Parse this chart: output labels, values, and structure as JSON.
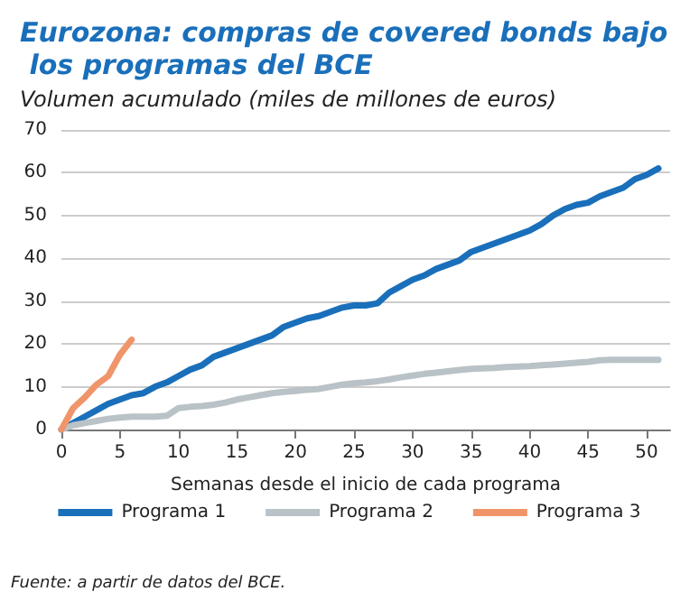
{
  "chart_data": {
    "type": "line",
    "title": "Eurozona: compras de covered bonds bajo los programas del BCE",
    "subtitle": "Volumen acumulado (miles de millones de euros)",
    "xlabel": "Semanas desde el inicio de cada programa",
    "annotations": [
      "Fuente: a partir de datos del BCE."
    ],
    "xlim": [
      0,
      52
    ],
    "xticks": [
      0,
      5,
      10,
      15,
      20,
      25,
      30,
      35,
      40,
      45,
      50
    ],
    "ylim": [
      0,
      70
    ],
    "yticks": [
      0,
      10,
      20,
      30,
      40,
      50,
      60,
      70
    ],
    "grid": "y",
    "legend": "bottom",
    "line_style": "solid",
    "marker": "none",
    "series": [
      {
        "name": "Programa 1",
        "color": "#1a6fba",
        "x": [
          0,
          1,
          2,
          3,
          4,
          5,
          6,
          7,
          8,
          9,
          10,
          11,
          12,
          13,
          14,
          15,
          16,
          17,
          18,
          19,
          20,
          21,
          22,
          23,
          24,
          25,
          26,
          27,
          28,
          29,
          30,
          31,
          32,
          33,
          34,
          35,
          36,
          37,
          38,
          39,
          40,
          41,
          42,
          43,
          44,
          45,
          46,
          47,
          48,
          49,
          50,
          51
        ],
        "values": [
          0,
          1.5,
          3,
          4.5,
          6,
          7,
          8,
          8.5,
          10,
          11,
          12.5,
          14,
          15,
          17,
          18,
          19,
          20,
          21,
          22,
          24,
          25,
          26,
          26.5,
          27.5,
          28.5,
          29,
          29,
          29.5,
          32,
          33.5,
          35,
          36,
          37.5,
          38.5,
          39.5,
          41.5,
          42.5,
          43.5,
          44.5,
          45.5,
          46.5,
          48,
          50,
          51.5,
          52.5,
          53,
          54.5,
          55.5,
          56.5,
          58.5,
          59.5,
          61
        ]
      },
      {
        "name": "Programa 2",
        "color": "#b9c2c6",
        "x": [
          0,
          1,
          2,
          3,
          4,
          5,
          6,
          7,
          8,
          9,
          10,
          11,
          12,
          13,
          14,
          15,
          16,
          17,
          18,
          19,
          20,
          21,
          22,
          23,
          24,
          25,
          26,
          27,
          28,
          29,
          30,
          31,
          32,
          33,
          34,
          35,
          36,
          37,
          38,
          39,
          40,
          41,
          42,
          43,
          44,
          45,
          46,
          47,
          48,
          49,
          50,
          51
        ],
        "values": [
          0,
          1,
          1.5,
          2,
          2.5,
          2.8,
          3,
          3,
          3,
          3.2,
          5,
          5.3,
          5.5,
          5.8,
          6.3,
          7,
          7.5,
          8,
          8.5,
          8.8,
          9,
          9.3,
          9.5,
          10,
          10.5,
          10.8,
          11,
          11.3,
          11.7,
          12.2,
          12.6,
          13,
          13.3,
          13.6,
          13.9,
          14.2,
          14.3,
          14.4,
          14.6,
          14.7,
          14.8,
          15,
          15.2,
          15.4,
          15.6,
          15.8,
          16.2,
          16.3,
          16.3,
          16.3,
          16.3,
          16.3
        ]
      },
      {
        "name": "Programa 3",
        "color": "#f0956a",
        "x": [
          0,
          1,
          2,
          3,
          4,
          5,
          6
        ],
        "values": [
          0,
          5,
          7.5,
          10.5,
          12.5,
          17.5,
          21
        ]
      }
    ]
  }
}
